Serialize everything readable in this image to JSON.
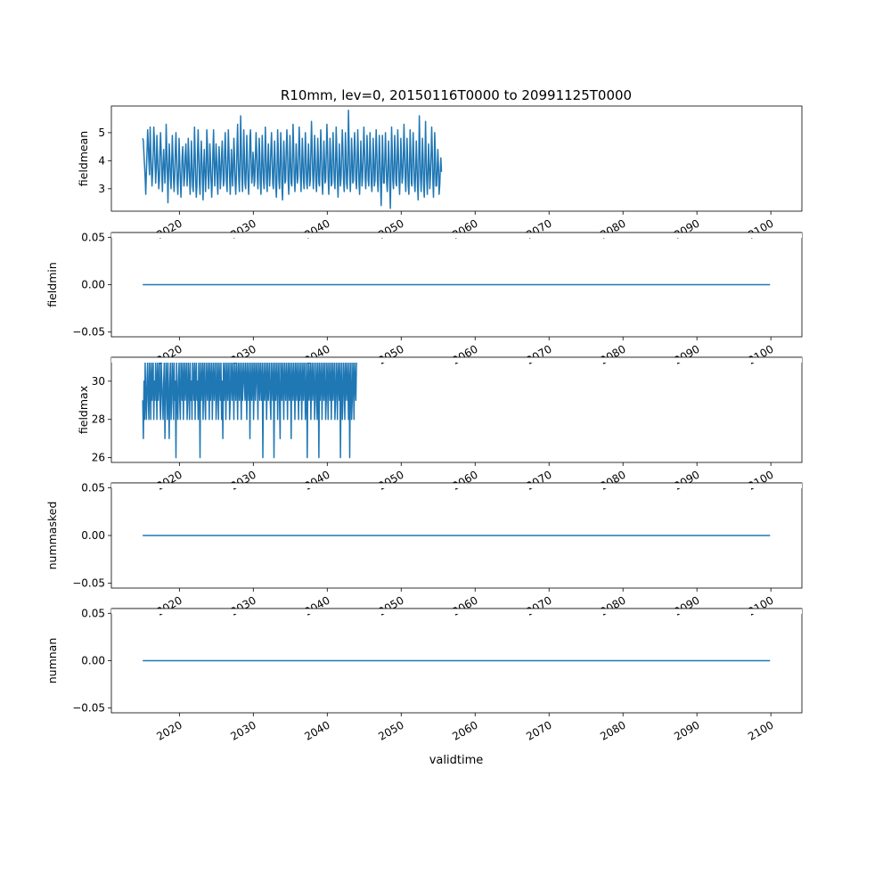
{
  "figure": {
    "title": "R10mm, lev=0, 20150116T0000 to 20991125T0000",
    "xlabel": "validtime"
  },
  "chart_data": [
    {
      "type": "line",
      "ylabel": "fieldmean",
      "xlim": [
        2010.8,
        2104.2
      ],
      "ylim": [
        2.2,
        5.95
      ],
      "yticks": [
        3,
        4,
        5
      ],
      "ytick_labels": [
        "3",
        "4",
        "5"
      ],
      "xticks": [
        2020,
        2030,
        2040,
        2050,
        2060,
        2070,
        2080,
        2090,
        2100
      ],
      "xtick_labels": [
        "2020",
        "2030",
        "2040",
        "2050",
        "2060",
        "2070",
        "2080",
        "2090",
        "2100"
      ],
      "x_range": [
        2015.04,
        2099.9
      ],
      "series": [
        {
          "color": "#1f77b4",
          "note_values": "monthly series, year-fraction x; seasonal cycle approx 2.5–5.8",
          "x_start": 2015.04,
          "x_step": 0.08333,
          "values": [
            4.8,
            4.7,
            4.2,
            3.8,
            3.4,
            2.8,
            3.6,
            4.3,
            5.1,
            4.6,
            4.0,
            3.5,
            5.2,
            4.4,
            3.7,
            3.1,
            3.5,
            4.2,
            5.2,
            4.7,
            3.9,
            3.2,
            3.7,
            4.9,
            4.2,
            3.6,
            3.0,
            3.3,
            4.4,
            5.0,
            4.3,
            3.5,
            2.9,
            3.9,
            4.4,
            3.8,
            3.2,
            3.8,
            5.3,
            4.5,
            3.6,
            2.5,
            3.6,
            4.6,
            4.1,
            3.4,
            3.0,
            3.9,
            4.9,
            4.2,
            3.3,
            2.9,
            3.4,
            4.4,
            5.0,
            4.1,
            3.2,
            2.8,
            3.6,
            4.8,
            4.0,
            3.3,
            2.7,
            3.3,
            4.1,
            4.5,
            3.8,
            3.1,
            3.4,
            4.2,
            4.6,
            3.9,
            3.1,
            3.6,
            4.8,
            4.2,
            3.4,
            2.8,
            3.5,
            4.7,
            4.0,
            3.1,
            2.9,
            3.8,
            5.2,
            4.3,
            3.3,
            2.7,
            3.1,
            4.3,
            5.1,
            4.2,
            3.2,
            2.8,
            3.9,
            4.7,
            4.0,
            3.2,
            2.6,
            3.8,
            4.4,
            3.6,
            2.9,
            3.5,
            5.1,
            4.6,
            3.5,
            3.0,
            3.6,
            4.6,
            4.1,
            3.3,
            2.7,
            3.3,
            4.4,
            5.1,
            3.9,
            3.1,
            3.8,
            4.6,
            4.0,
            3.2,
            2.8,
            3.8,
            4.5,
            3.9,
            3.0,
            3.4,
            4.2,
            4.7,
            3.8,
            3.1,
            3.3,
            4.3,
            5.0,
            4.1,
            3.2,
            2.9,
            4.0,
            5.1,
            4.3,
            3.4,
            2.8,
            3.5,
            4.4,
            3.8,
            3.1,
            3.7,
            4.8,
            4.2,
            3.2,
            2.8,
            3.4,
            4.5,
            5.3,
            4.1,
            3.3,
            2.9,
            4.0,
            5.6,
            4.5,
            3.4,
            2.9,
            3.8,
            5.1,
            4.2,
            3.2,
            3.0,
            3.7,
            4.9,
            4.0,
            3.3,
            2.8,
            3.6,
            4.8,
            5.1,
            4.0,
            3.2,
            3.5,
            4.3,
            4.0,
            3.1,
            3.3,
            4.2,
            5.0,
            4.3,
            3.4,
            3.0,
            3.8,
            4.8,
            4.2,
            3.2,
            2.8,
            3.7,
            4.9,
            4.1,
            3.3,
            3.0,
            3.9,
            5.2,
            4.3,
            3.2,
            2.9,
            3.8,
            4.6,
            3.8,
            3.1,
            3.5,
            4.4,
            5.0,
            4.2,
            3.2,
            3.0,
            3.9,
            4.7,
            4.0,
            3.1,
            2.7,
            3.6,
            5.1,
            4.4,
            3.3,
            3.0,
            3.8,
            5.0,
            4.2,
            3.1,
            2.6,
            3.5,
            4.7,
            4.0,
            3.2,
            3.3,
            4.4,
            5.1,
            4.3,
            3.3,
            2.8,
            3.6,
            4.9,
            4.1,
            3.2,
            3.1,
            4.0,
            5.3,
            4.4,
            3.4,
            2.9,
            3.6,
            4.6,
            4.0,
            3.2,
            3.4,
            4.2,
            5.2,
            4.4,
            3.4,
            2.9,
            3.7,
            4.8,
            4.1,
            3.3,
            3.0,
            3.8,
            5.0,
            4.3,
            3.2,
            3.0,
            3.7,
            4.6,
            3.9,
            3.1,
            3.3,
            4.3,
            5.4,
            4.5,
            3.5,
            3.0,
            3.7,
            4.9,
            4.2,
            3.3,
            2.9,
            3.6,
            4.8,
            4.2,
            3.2,
            3.1,
            4.0,
            5.1,
            4.3,
            3.3,
            2.8,
            3.6,
            4.7,
            4.0,
            3.2,
            3.3,
            4.2,
            5.3,
            4.5,
            3.4,
            2.8,
            3.6,
            4.8,
            4.2,
            3.1,
            3.2,
            4.0,
            5.0,
            4.2,
            3.3,
            3.0,
            3.8,
            5.2,
            4.4,
            3.3,
            2.7,
            3.5,
            4.6,
            3.9,
            3.1,
            3.4,
            4.3,
            5.1,
            4.3,
            3.3,
            2.9,
            3.7,
            5.0,
            4.2,
            3.2,
            3.0,
            3.9,
            5.8,
            4.6,
            3.5,
            2.9,
            3.6,
            4.8,
            4.1,
            3.2,
            3.3,
            4.2,
            5.0,
            4.3,
            3.3,
            3.0,
            3.8,
            5.1,
            4.3,
            3.2,
            2.8,
            3.6,
            4.7,
            4.0,
            3.1,
            3.4,
            4.3,
            5.2,
            4.4,
            3.4,
            3.0,
            3.7,
            4.9,
            4.2,
            3.3,
            3.1,
            3.9,
            5.0,
            4.2,
            3.2,
            2.9,
            3.6,
            4.8,
            4.1,
            3.1,
            3.3,
            4.2,
            5.1,
            4.3,
            3.3,
            2.9,
            3.7,
            4.9,
            4.2,
            3.2,
            2.4,
            3.5,
            4.9,
            4.2,
            3.2,
            3.2,
            4.0,
            5.0,
            4.2,
            3.2,
            2.9,
            3.6,
            4.7,
            4.0,
            3.1,
            2.3,
            3.6,
            5.2,
            4.4,
            3.3,
            3.0,
            3.8,
            4.9,
            4.2,
            3.2,
            3.1,
            4.0,
            5.1,
            4.3,
            3.3,
            2.8,
            3.6,
            4.8,
            4.1,
            3.2,
            3.4,
            4.2,
            5.3,
            4.5,
            3.4,
            2.9,
            3.7,
            4.8,
            4.1,
            3.1,
            2.8,
            3.8,
            5.1,
            4.3,
            3.2,
            3.1,
            4.0,
            5.0,
            4.2,
            3.2,
            2.9,
            3.6,
            4.7,
            4.0,
            3.1,
            2.6,
            3.7,
            5.6,
            4.5,
            3.4,
            2.9,
            3.6,
            4.8,
            4.1,
            3.1,
            2.7,
            3.9,
            5.4,
            4.3,
            3.3,
            2.8,
            3.6,
            4.6,
            3.9,
            3.0,
            3.4,
            4.2,
            5.2,
            4.3,
            3.2,
            2.7,
            3.6,
            5.0,
            4.2,
            3.1,
            3.1,
            3.7,
            4.4,
            3.8,
            2.8,
            3.1,
            3.6,
            4.1,
            3.6
          ]
        }
      ]
    },
    {
      "type": "line",
      "ylabel": "fieldmin",
      "xlim": [
        2010.8,
        2104.2
      ],
      "ylim": [
        -0.055,
        0.055
      ],
      "yticks": [
        -0.05,
        0.0,
        0.05
      ],
      "ytick_labels": [
        "−0.05",
        "0.00",
        "0.05"
      ],
      "xticks": [
        2020,
        2030,
        2040,
        2050,
        2060,
        2070,
        2080,
        2090,
        2100
      ],
      "xtick_labels": [
        "2020",
        "2030",
        "2040",
        "2050",
        "2060",
        "2070",
        "2080",
        "2090",
        "2100"
      ],
      "x_range": [
        2015.04,
        2099.9
      ],
      "series": [
        {
          "color": "#1f77b4",
          "constant": 0.0
        }
      ]
    },
    {
      "type": "line",
      "ylabel": "fieldmax",
      "xlim": [
        2010.8,
        2104.2
      ],
      "ylim": [
        25.75,
        31.25
      ],
      "yticks": [
        26,
        28,
        30
      ],
      "ytick_labels": [
        "26",
        "28",
        "30"
      ],
      "xticks": [
        2020,
        2030,
        2040,
        2050,
        2060,
        2070,
        2080,
        2090,
        2100
      ],
      "xtick_labels": [
        "2020",
        "2030",
        "2040",
        "2050",
        "2060",
        "2070",
        "2080",
        "2090",
        "2100"
      ],
      "x_range": [
        2015.04,
        2099.9
      ],
      "series": [
        {
          "color": "#1f77b4",
          "x_start": 2015.04,
          "x_step": 0.08333,
          "values": [
            29,
            27,
            30,
            28,
            31,
            29,
            28,
            30,
            31,
            29,
            28,
            31,
            30,
            28,
            31,
            29,
            30,
            31,
            28,
            30,
            29,
            31,
            30,
            28,
            31,
            29,
            30,
            31,
            29,
            28,
            31,
            30,
            29,
            28,
            30,
            31,
            27,
            29,
            31,
            30,
            28,
            31,
            29,
            27,
            30,
            31,
            28,
            29,
            31,
            30,
            28,
            31,
            29,
            30,
            26,
            31,
            29,
            28,
            30,
            31,
            29,
            28,
            31,
            30,
            29,
            31,
            28,
            30,
            31,
            29,
            30,
            31,
            28,
            29,
            31,
            30,
            28,
            31,
            29,
            30,
            28,
            31,
            30,
            29,
            31,
            28,
            30,
            31,
            29,
            30,
            28,
            31,
            30,
            26,
            31,
            29,
            30,
            31,
            28,
            30,
            31,
            29,
            28,
            31,
            30,
            29,
            31,
            30,
            28,
            31,
            29,
            30,
            31,
            28,
            30,
            31,
            29,
            30,
            31,
            28,
            29,
            31,
            30,
            28,
            31,
            30,
            29,
            31,
            28,
            30,
            27,
            31,
            29,
            30,
            31,
            28,
            30,
            31,
            29,
            30,
            31,
            28,
            29,
            31,
            30,
            29,
            31,
            30,
            28,
            31,
            30,
            29,
            31,
            30,
            28,
            31,
            30,
            29,
            31,
            30,
            28,
            31,
            29,
            30,
            31,
            30,
            29,
            31,
            30,
            28,
            31,
            30,
            29,
            31,
            27,
            30,
            31,
            29,
            30,
            31,
            28,
            30,
            31,
            29,
            30,
            31,
            30,
            28,
            31,
            30,
            29,
            31,
            30,
            29,
            31,
            26,
            30,
            31,
            29,
            30,
            31,
            28,
            30,
            31,
            29,
            30,
            31,
            29,
            28,
            31,
            30,
            29,
            31,
            26,
            30,
            31,
            29,
            30,
            31,
            28,
            30,
            31,
            29,
            27,
            31,
            30,
            29,
            31,
            30,
            28,
            31,
            30,
            29,
            31,
            30,
            28,
            31,
            30,
            29,
            31,
            30,
            27,
            31,
            30,
            29,
            31,
            30,
            28,
            31,
            30,
            29,
            31,
            30,
            28,
            31,
            29,
            30,
            31,
            28,
            30,
            31,
            29,
            30,
            31,
            28,
            29,
            31,
            26,
            30,
            31,
            29,
            30,
            31,
            28,
            30,
            31,
            29,
            30,
            31,
            28,
            29,
            31,
            30,
            28,
            31,
            30,
            26,
            31,
            29,
            30,
            31,
            28,
            30,
            31,
            29,
            30,
            31,
            28,
            29,
            31,
            30,
            28,
            31,
            30,
            29,
            31,
            28,
            30,
            31,
            29,
            30,
            31,
            28,
            29,
            31,
            30,
            28,
            31,
            30,
            29,
            31,
            26,
            30,
            31,
            28,
            29,
            31,
            30,
            28,
            31,
            30,
            29,
            31,
            30,
            28,
            31,
            26,
            30,
            31,
            28,
            29,
            31,
            30,
            28,
            31,
            30,
            29,
            31
          ]
        }
      ]
    },
    {
      "type": "line",
      "ylabel": "nummasked",
      "xlim": [
        2010.8,
        2104.2
      ],
      "ylim": [
        -0.055,
        0.055
      ],
      "yticks": [
        -0.05,
        0.0,
        0.05
      ],
      "ytick_labels": [
        "−0.05",
        "0.00",
        "0.05"
      ],
      "xticks": [
        2020,
        2030,
        2040,
        2050,
        2060,
        2070,
        2080,
        2090,
        2100
      ],
      "xtick_labels": [
        "2020",
        "2030",
        "2040",
        "2050",
        "2060",
        "2070",
        "2080",
        "2090",
        "2100"
      ],
      "x_range": [
        2015.04,
        2099.9
      ],
      "series": [
        {
          "color": "#1f77b4",
          "constant": 0.0
        }
      ]
    },
    {
      "type": "line",
      "ylabel": "numnan",
      "xlim": [
        2010.8,
        2104.2
      ],
      "ylim": [
        -0.055,
        0.055
      ],
      "yticks": [
        -0.05,
        0.0,
        0.05
      ],
      "ytick_labels": [
        "−0.05",
        "0.00",
        "0.05"
      ],
      "xticks": [
        2020,
        2030,
        2040,
        2050,
        2060,
        2070,
        2080,
        2090,
        2100
      ],
      "xtick_labels": [
        "2020",
        "2030",
        "2040",
        "2050",
        "2060",
        "2070",
        "2080",
        "2090",
        "2100"
      ],
      "x_range": [
        2015.04,
        2099.9
      ],
      "series": [
        {
          "color": "#1f77b4",
          "constant": 0.0
        }
      ]
    }
  ]
}
